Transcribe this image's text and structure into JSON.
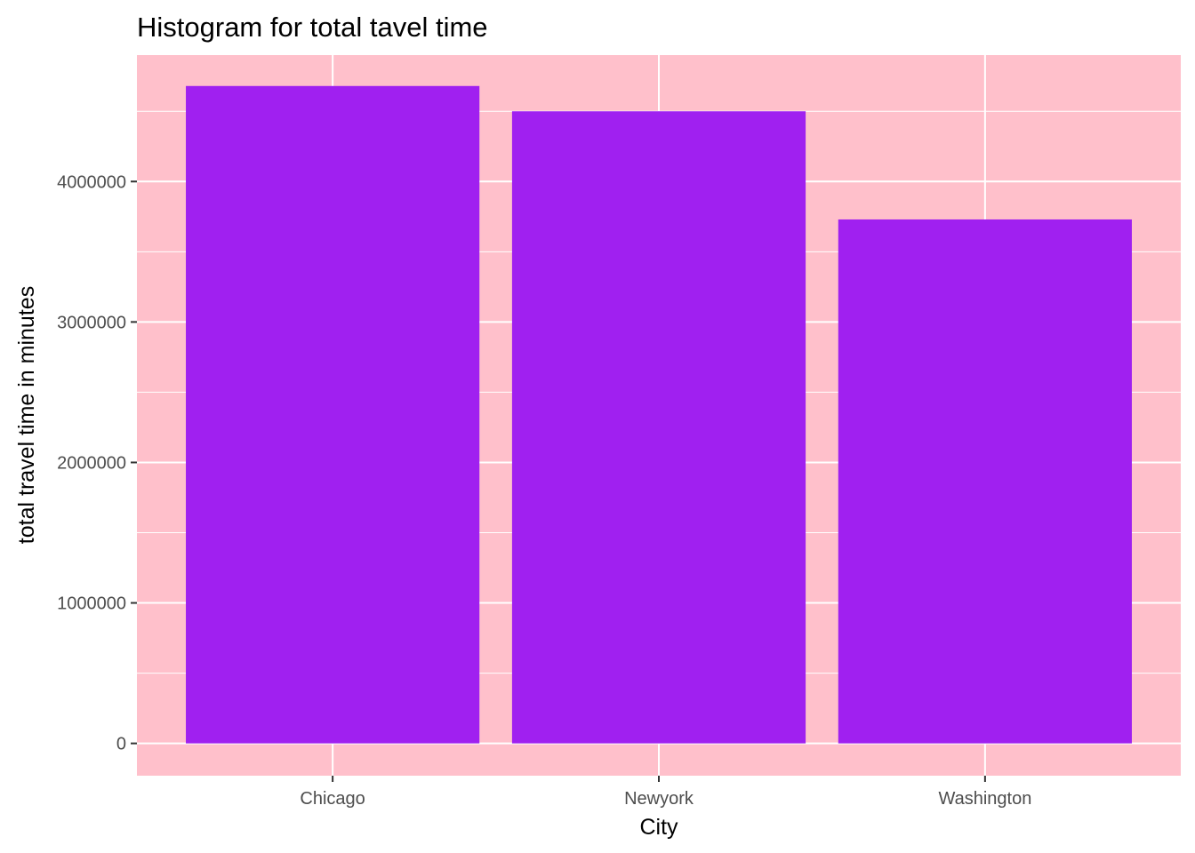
{
  "chart_data": {
    "type": "bar",
    "title": "Histogram for total tavel time",
    "xlabel": "City",
    "ylabel": "total travel time in minutes",
    "categories": [
      "Chicago",
      "Newyork",
      "Washington"
    ],
    "values": [
      4680000,
      4500000,
      3730000
    ],
    "ylim": [
      -230000,
      4900000
    ],
    "yticks": [
      0,
      1000000,
      2000000,
      3000000,
      4000000
    ],
    "ytick_labels": [
      "0",
      "1000000",
      "2000000",
      "3000000",
      "4000000"
    ],
    "grid": true,
    "legend": "none",
    "colors": {
      "panel_background": "#FFC0CB",
      "bar_fill": "#A020F0",
      "grid": "#FFFFFF"
    }
  }
}
